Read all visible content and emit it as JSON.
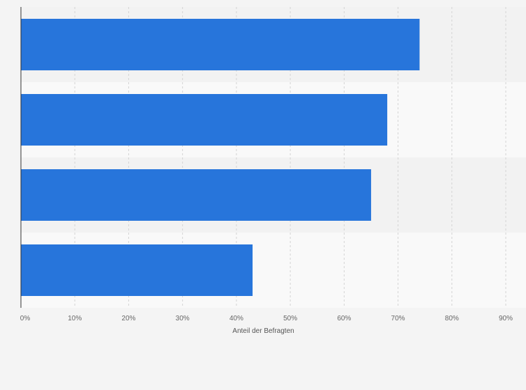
{
  "chart_data": {
    "type": "bar",
    "orientation": "horizontal",
    "categories": [
      "",
      "",
      "",
      ""
    ],
    "values": [
      74,
      68,
      65,
      43
    ],
    "xlabel": "Anteil der Befragten",
    "ylabel": "",
    "xlim": [
      0,
      90
    ],
    "xticks": [
      0,
      10,
      20,
      30,
      40,
      50,
      60,
      70,
      80,
      90
    ],
    "tick_labels": [
      "0%",
      "10%",
      "20%",
      "30%",
      "40%",
      "50%",
      "60%",
      "70%",
      "80%",
      "90%"
    ],
    "grid": "vertical dashed",
    "legend": "none",
    "bar_color": "#2775db",
    "band_colors": [
      "#f2f2f2",
      "#f9f9f9"
    ]
  }
}
